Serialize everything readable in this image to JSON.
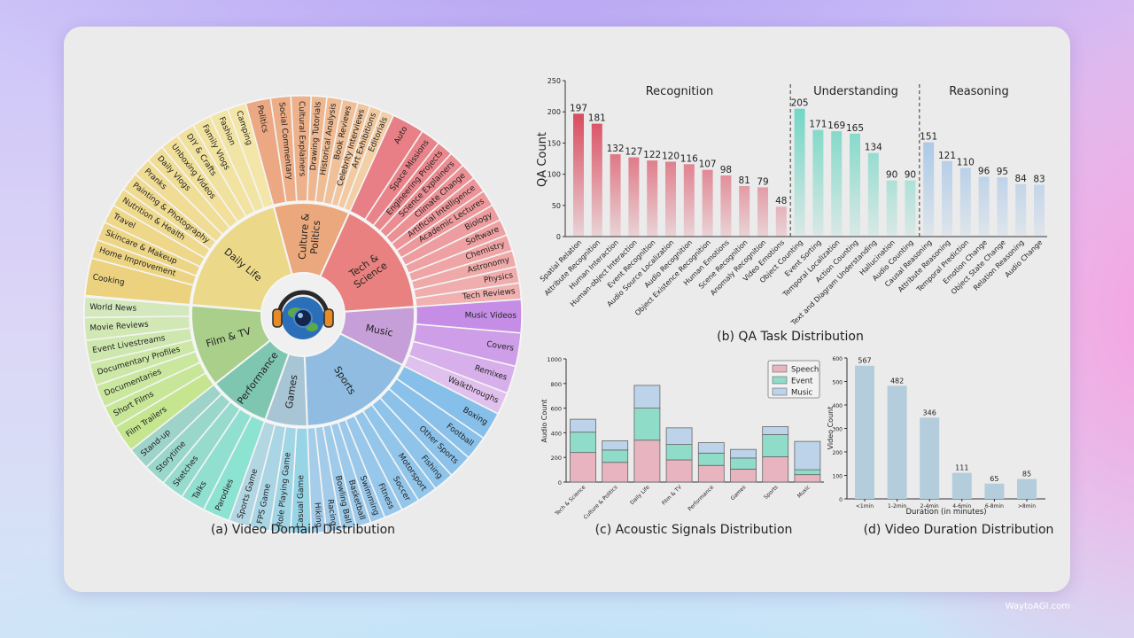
{
  "watermark": "WaytoAGI.com",
  "captions": {
    "a": "(a) Video Domain Distribution",
    "b": "(b) QA Task Distribution",
    "c": "(c) Acoustic Signals Distribution",
    "d": "(d) Video Duration Distribution"
  },
  "chart_data": [
    {
      "type": "sunburst",
      "title": "(a) Video Domain Distribution",
      "categories": [
        {
          "label": "Daily Life",
          "share_pct": 19.4,
          "color": "#ecd889",
          "outer_colors": [
            "#ecd27f",
            "#f3e6a8"
          ],
          "items": [
            {
              "label": "Cooking",
              "w": 2
            },
            {
              "label": "Home Improvement",
              "w": 1
            },
            {
              "label": "Skincare & Makeup",
              "w": 1
            },
            {
              "label": "Travel",
              "w": 1
            },
            {
              "label": "Nutrition & Health",
              "w": 1
            },
            {
              "label": "Painting & Photography",
              "w": 1
            },
            {
              "label": "Pranks",
              "w": 1
            },
            {
              "label": "Daily Vlogs",
              "w": 1
            },
            {
              "label": "Unboxing Videos",
              "w": 1
            },
            {
              "label": "DIY & Crafts",
              "w": 1
            },
            {
              "label": "Family Vlogs",
              "w": 1
            },
            {
              "label": "Fashion",
              "w": 1
            },
            {
              "label": "Camping",
              "w": 1
            }
          ]
        },
        {
          "label": "Culture &\nPolitics",
          "share_pct": 11.0,
          "color": "#eaa87c",
          "outer_colors": [
            "#eba882",
            "#f3cfa6"
          ],
          "items": [
            {
              "label": "Politics",
              "w": 1.6
            },
            {
              "label": "Social Commentary",
              "w": 1.3
            },
            {
              "label": "Cultural Explainers",
              "w": 1.3
            },
            {
              "label": "Drawing Tutorials",
              "w": 1
            },
            {
              "label": "Historical Analysis",
              "w": 1
            },
            {
              "label": "Book Reviews",
              "w": 1
            },
            {
              "label": "Celebrity Interviews",
              "w": 0.8
            },
            {
              "label": "Art Exhibitions",
              "w": 0.8
            },
            {
              "label": "Editorials",
              "w": 0.8
            }
          ]
        },
        {
          "label": "Tech &\nScience",
          "share_pct": 17.1,
          "color": "#e8817f",
          "outer_colors": [
            "#e87f86",
            "#f1b1b0"
          ],
          "items": [
            {
              "label": "Auto",
              "w": 2
            },
            {
              "label": "Space Missions",
              "w": 1.2
            },
            {
              "label": "Engineering Projects",
              "w": 1
            },
            {
              "label": "Science Explainers",
              "w": 1
            },
            {
              "label": "Climate Change",
              "w": 1
            },
            {
              "label": "Artificial Intelligence",
              "w": 1
            },
            {
              "label": "Academic Lectures",
              "w": 1
            },
            {
              "label": "Biology",
              "w": 1
            },
            {
              "label": "Software",
              "w": 1
            },
            {
              "label": "Chemistry",
              "w": 1
            },
            {
              "label": "Astronomy",
              "w": 1
            },
            {
              "label": "Physics",
              "w": 1
            },
            {
              "label": "Tech Reviews",
              "w": 1
            }
          ]
        },
        {
          "label": "Music",
          "share_pct": 8.6,
          "color": "#c79fd8",
          "outer_colors": [
            "#c58de6",
            "#e0c0ec"
          ],
          "items": [
            {
              "label": "Music Videos",
              "w": 1.2
            },
            {
              "label": "Covers",
              "w": 1.2
            },
            {
              "label": "Remixes",
              "w": 1
            },
            {
              "label": "Walkthroughs",
              "w": 0.8
            }
          ]
        },
        {
          "label": "Sports",
          "share_pct": 16.9,
          "color": "#8fbce0",
          "outer_colors": [
            "#86c0ea",
            "#a5cdea"
          ],
          "items": [
            {
              "label": "Boxing",
              "w": 1.5
            },
            {
              "label": "Football",
              "w": 1.3
            },
            {
              "label": "Other Sports",
              "w": 1.3
            },
            {
              "label": "Fishing",
              "w": 1.1
            },
            {
              "label": "Motorsport",
              "w": 1.1
            },
            {
              "label": "Soccer",
              "w": 1
            },
            {
              "label": "Fitness",
              "w": 1
            },
            {
              "label": "Swimming",
              "w": 0.8
            },
            {
              "label": "Basketball",
              "w": 0.8
            },
            {
              "label": "Bowling Ball",
              "w": 0.8
            },
            {
              "label": "Racing",
              "w": 0.8
            },
            {
              "label": "Hiking",
              "w": 0.8
            }
          ]
        },
        {
          "label": "Games",
          "share_pct": 6.1,
          "color": "#a7c5d5",
          "outer_colors": [
            "#96d4e6",
            "#b3d6e3"
          ],
          "items": [
            {
              "label": "Casual Game",
              "w": 1
            },
            {
              "label": "Role Playing Game",
              "w": 1
            },
            {
              "label": "FPS Game",
              "w": 1
            },
            {
              "label": "Sports Game",
              "w": 1
            }
          ]
        },
        {
          "label": "Performance",
          "share_pct": 8.9,
          "color": "#7fc6b1",
          "outer_colors": [
            "#8de3d2",
            "#9ed3c9"
          ],
          "items": [
            {
              "label": "Parodies",
              "w": 1.2
            },
            {
              "label": "Talks",
              "w": 1.1
            },
            {
              "label": "Sketches",
              "w": 1
            },
            {
              "label": "Storytime",
              "w": 1
            },
            {
              "label": "Stand-up",
              "w": 1
            }
          ]
        },
        {
          "label": "Film & TV",
          "share_pct": 11.9,
          "color": "#a9cf8b",
          "outer_colors": [
            "#c5e68f",
            "#d3e8bd"
          ],
          "items": [
            {
              "label": "Film Trailers",
              "w": 1.2
            },
            {
              "label": "Short Films",
              "w": 1
            },
            {
              "label": "Documentaries",
              "w": 1
            },
            {
              "label": "Documentary Profiles",
              "w": 1
            },
            {
              "label": "Event Livestreams",
              "w": 1
            },
            {
              "label": "Movie Reviews",
              "w": 1
            },
            {
              "label": "World News",
              "w": 0.9
            }
          ]
        }
      ]
    },
    {
      "type": "bar",
      "title": "(b) QA Task Distribution",
      "ylabel": "QA Count",
      "ylim": [
        0,
        250
      ],
      "yticks": [
        0,
        50,
        100,
        150,
        200,
        250
      ],
      "groups": [
        {
          "name": "Recognition",
          "color": "#d6263e",
          "categories": [
            "Spatial Relation",
            "Attribute Recognition",
            "Human Interaction",
            "Human-object Interaction",
            "Event Recognition",
            "Audio Source Localization",
            "Audio Recognition",
            "Object Existence Recognition",
            "Human Emotions",
            "Scene Recognition",
            "Anomaly Recognition",
            "Video Emotions"
          ],
          "values": [
            197,
            181,
            132,
            127,
            122,
            120,
            116,
            107,
            98,
            81,
            79,
            48
          ]
        },
        {
          "name": "Understanding",
          "color": "#5cd3bd",
          "categories": [
            "Object Counting",
            "Event Sorting",
            "Temporal Localization",
            "Action Counting",
            "Text and Diagram Understanding",
            "Hallucination",
            "Audio Counting"
          ],
          "values": [
            205,
            171,
            169,
            165,
            134,
            90,
            90
          ]
        },
        {
          "name": "Reasoning",
          "color": "#8ab7e6",
          "categories": [
            "Causal Reasoning",
            "Attribute Reasoning",
            "Temporal Prediction",
            "Emotion Change",
            "Object State Change",
            "Relation Reasoning",
            "Audio Change"
          ],
          "values": [
            151,
            121,
            110,
            96,
            95,
            84,
            83
          ]
        }
      ]
    },
    {
      "type": "bar",
      "stacked": true,
      "title": "(c) Acoustic Signals Distribution",
      "ylabel": "Audio Count",
      "ylim": [
        0,
        1000
      ],
      "yticks": [
        0,
        200,
        400,
        600,
        800,
        1000
      ],
      "legend": "top-right",
      "categories": [
        "Tech & Science",
        "Culture & Politics",
        "Daily Life",
        "Film & TV",
        "Performance",
        "Games",
        "Sports",
        "Music"
      ],
      "series": [
        {
          "name": "Speech",
          "color": "#e8b4c0",
          "values": [
            240,
            160,
            340,
            180,
            135,
            105,
            205,
            60
          ]
        },
        {
          "name": "Event",
          "color": "#8fdcc9",
          "values": [
            165,
            100,
            260,
            125,
            100,
            90,
            180,
            40
          ]
        },
        {
          "name": "Music",
          "color": "#bcd3ea",
          "values": [
            105,
            75,
            185,
            135,
            85,
            70,
            65,
            230
          ]
        }
      ]
    },
    {
      "type": "bar",
      "title": "(d) Video Duration Distribution",
      "xlabel": "Duration (in minutes)",
      "ylabel": "Video Count",
      "ylim": [
        0,
        600
      ],
      "yticks": [
        0,
        100,
        200,
        300,
        400,
        500,
        600
      ],
      "color": "#b3cddc",
      "categories": [
        "<1min",
        "1-2min",
        "2-4min",
        "4-6min",
        "6-8min",
        ">8min"
      ],
      "values": [
        567,
        482,
        346,
        111,
        65,
        85
      ]
    }
  ]
}
